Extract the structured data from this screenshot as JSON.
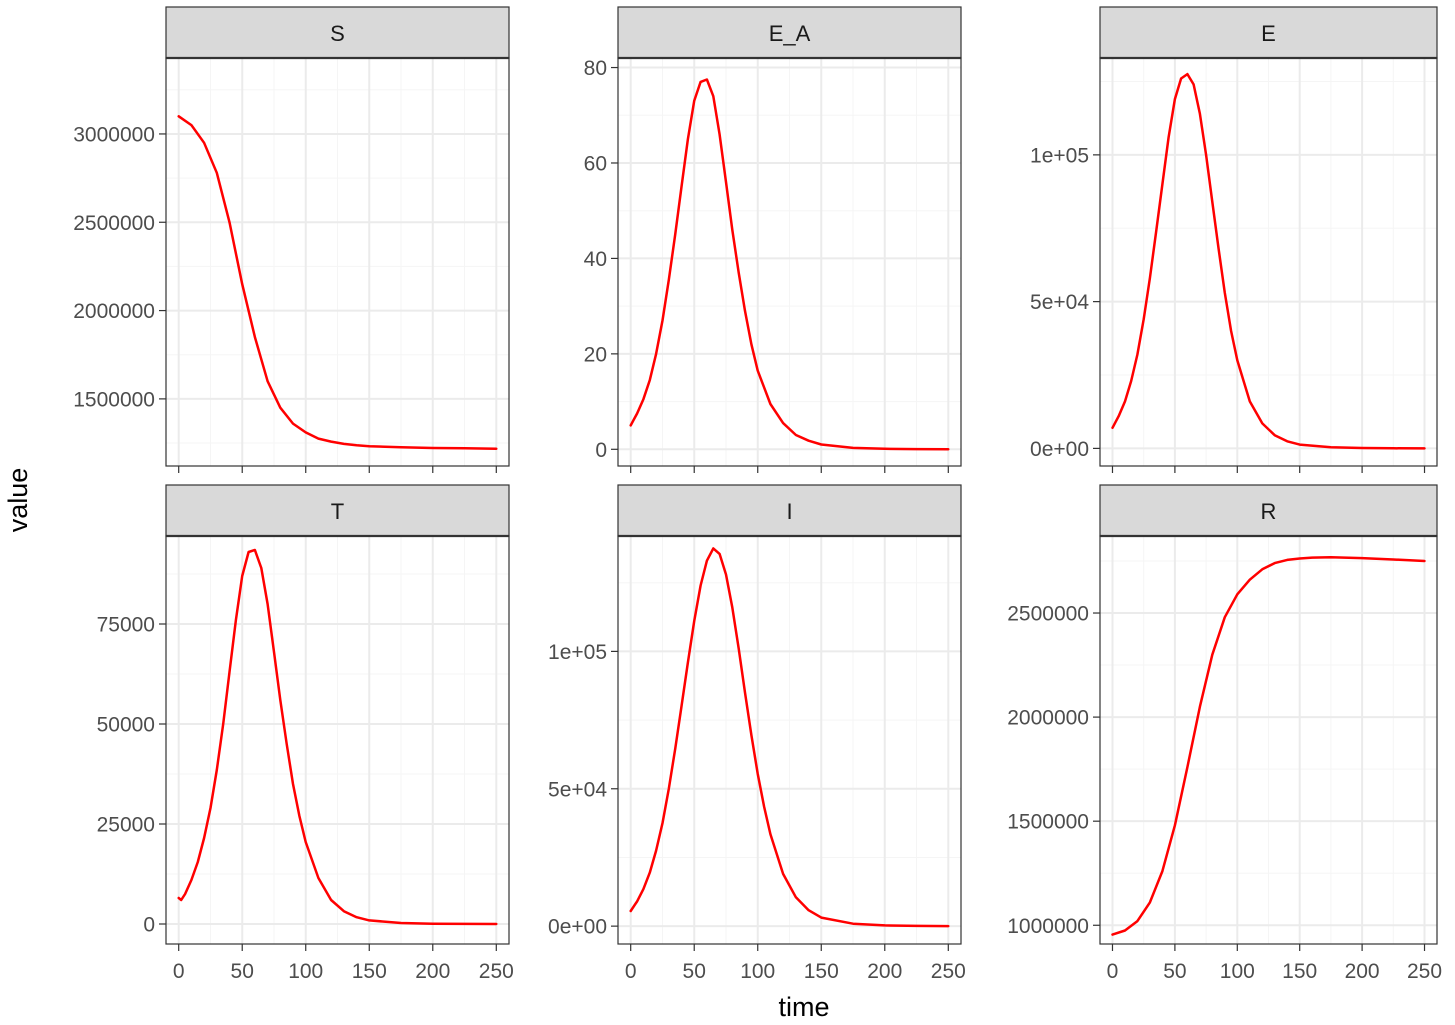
{
  "colors": {
    "line": "#ff0000",
    "strip_bg": "#d9d9d9",
    "strip_text": "#1a1a1a",
    "panel_border": "#333333",
    "grid_major": "#ebebeb",
    "grid_minor": "#f5f5f5",
    "tick_text": "#4d4d4d"
  },
  "chart_data": {
    "type": "line",
    "layout": "facet grid 2 rows x 3 columns, free y scales",
    "xlabel": "time",
    "ylabel": "value",
    "x_ticks": [
      0,
      50,
      100,
      150,
      200,
      250
    ],
    "x_tick_labels": [
      "0",
      "50",
      "100",
      "150",
      "200",
      "250"
    ],
    "xlim": [
      -10,
      260
    ],
    "panels": [
      {
        "title": "S",
        "ylim": [
          1120000,
          3430000
        ],
        "y_ticks": [
          1500000,
          2000000,
          2500000,
          3000000
        ],
        "y_tick_labels": [
          "1500000",
          "2000000",
          "2500000",
          "3000000"
        ],
        "series": [
          {
            "name": "S",
            "x": [
              0,
              10,
              20,
              30,
              40,
              50,
              60,
              70,
              80,
              90,
              100,
              110,
              120,
              130,
              140,
              150,
              175,
              200,
              225,
              250
            ],
            "y": [
              3100000,
              3050000,
              2950000,
              2780000,
              2500000,
              2150000,
              1850000,
              1600000,
              1450000,
              1360000,
              1310000,
              1275000,
              1258000,
              1245000,
              1238000,
              1232000,
              1226000,
              1222000,
              1220000,
              1218000
            ]
          }
        ]
      },
      {
        "title": "E_A",
        "ylim": [
          -3.5,
          82
        ],
        "y_ticks": [
          0,
          20,
          40,
          60,
          80
        ],
        "y_tick_labels": [
          "0",
          "20",
          "40",
          "60",
          "80"
        ],
        "series": [
          {
            "name": "E_A",
            "x": [
              0,
              5,
              10,
              15,
              20,
              25,
              30,
              35,
              40,
              45,
              50,
              55,
              60,
              65,
              70,
              75,
              80,
              85,
              90,
              95,
              100,
              110,
              120,
              130,
              140,
              150,
              175,
              200,
              225,
              250
            ],
            "y": [
              5,
              7.5,
              10.5,
              14.5,
              20,
              27,
              35.5,
              45,
              55,
              65,
              73,
              77,
              77.5,
              74,
              66,
              56,
              46,
              37,
              29,
              22,
              16.5,
              9.5,
              5.5,
              3,
              1.8,
              1,
              0.3,
              0.1,
              0.05,
              0
            ]
          }
        ]
      },
      {
        "title": "E",
        "ylim": [
          -6000,
          133000
        ],
        "y_ticks": [
          0,
          50000,
          100000
        ],
        "y_tick_labels": [
          "0e+00",
          "5e+04",
          "1e+05"
        ],
        "series": [
          {
            "name": "E",
            "x": [
              0,
              5,
              10,
              15,
              20,
              25,
              30,
              35,
              40,
              45,
              50,
              55,
              60,
              65,
              70,
              75,
              80,
              85,
              90,
              95,
              100,
              110,
              120,
              130,
              140,
              150,
              175,
              200,
              225,
              250
            ],
            "y": [
              7000,
              11000,
              16000,
              23000,
              32000,
              44000,
              58000,
              74000,
              90000,
              106000,
              119000,
              126000,
              127500,
              124000,
              114000,
              100000,
              84000,
              68000,
              53000,
              40000,
              30000,
              16000,
              8500,
              4500,
              2400,
              1300,
              400,
              120,
              40,
              0
            ]
          }
        ]
      },
      {
        "title": "T",
        "ylim": [
          -5000,
          97000
        ],
        "y_ticks": [
          0,
          25000,
          50000,
          75000
        ],
        "y_tick_labels": [
          "0",
          "25000",
          "50000",
          "75000"
        ],
        "series": [
          {
            "name": "T",
            "x": [
              0,
              2,
              5,
              10,
              15,
              20,
              25,
              30,
              35,
              40,
              45,
              50,
              55,
              60,
              65,
              70,
              75,
              80,
              85,
              90,
              95,
              100,
              110,
              120,
              130,
              140,
              150,
              175,
              200,
              225,
              250
            ],
            "y": [
              6500,
              6000,
              7500,
              11000,
              15500,
              21500,
              29000,
              38500,
              50000,
              63000,
              76000,
              87000,
              93000,
              93500,
              89000,
              80000,
              68000,
              56000,
              45000,
              35000,
              27000,
              20500,
              11500,
              6000,
              3200,
              1700,
              900,
              250,
              80,
              30,
              0
            ]
          }
        ]
      },
      {
        "title": "I",
        "ylim": [
          -6500,
          142000
        ],
        "y_ticks": [
          0,
          50000,
          100000
        ],
        "y_tick_labels": [
          "0e+00",
          "5e+04",
          "1e+05"
        ],
        "series": [
          {
            "name": "I",
            "x": [
              0,
              5,
              10,
              15,
              20,
              25,
              30,
              35,
              40,
              45,
              50,
              55,
              60,
              65,
              70,
              75,
              80,
              85,
              90,
              95,
              100,
              105,
              110,
              120,
              130,
              140,
              150,
              175,
              200,
              225,
              250
            ],
            "y": [
              5500,
              9000,
              13500,
              19500,
              27500,
              37500,
              50000,
              64500,
              80000,
              96000,
              111000,
              124000,
              133000,
              137500,
              135500,
              128000,
              116000,
              101000,
              85000,
              69500,
              55500,
              43500,
              33500,
              19000,
              10500,
              5800,
              3100,
              900,
              260,
              80,
              0
            ]
          }
        ]
      },
      {
        "title": "R",
        "ylim": [
          910000,
          2870000
        ],
        "y_ticks": [
          1000000,
          1500000,
          2000000,
          2500000
        ],
        "y_tick_labels": [
          "1000000",
          "1500000",
          "2000000",
          "2500000"
        ],
        "series": [
          {
            "name": "R",
            "x": [
              0,
              10,
              20,
              30,
              40,
              50,
              60,
              70,
              80,
              90,
              100,
              110,
              120,
              130,
              140,
              150,
              160,
              175,
              200,
              225,
              250
            ],
            "y": [
              955000,
              975000,
              1020000,
              1110000,
              1260000,
              1480000,
              1760000,
              2050000,
              2300000,
              2480000,
              2590000,
              2660000,
              2710000,
              2740000,
              2755000,
              2762000,
              2766000,
              2768000,
              2764000,
              2757000,
              2750000
            ]
          }
        ]
      }
    ]
  }
}
